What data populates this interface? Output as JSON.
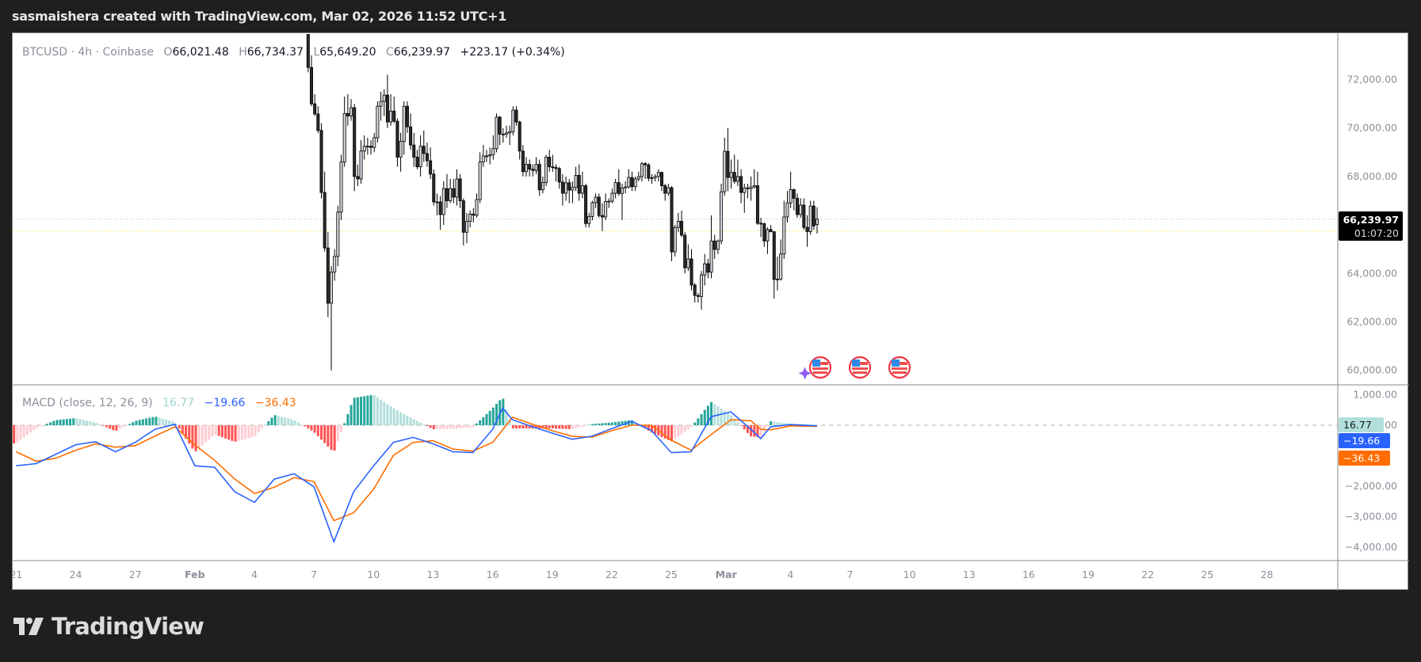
{
  "title": "sasmaishera created with TradingView.com, Mar 02, 2026 11:52 UTC+1",
  "legend": {
    "symbol": "BTCUSD · 4h · Coinbase",
    "o_label": "O",
    "o": "66,021.48",
    "h_label": "H",
    "h": "66,734.37",
    "l_label": "L",
    "l": "65,649.20",
    "c_label": "C",
    "c": "66,239.97",
    "change": "+223.17 (+0.34%)"
  },
  "macd_legend": {
    "name": "MACD (close, 12, 26, 9)",
    "histogram": "16.77",
    "macd": "−19.66",
    "signal": "−36.43"
  },
  "price_axis": [
    "72,000.00",
    "70,000.00",
    "68,000.00",
    "64,000.00",
    "62,000.00",
    "60,000.00"
  ],
  "price_tag": {
    "price": "66,239.97",
    "countdown": "01:07:20"
  },
  "macd_axis": [
    "1,000.00",
    "0.00",
    "−2,000.00",
    "−3,000.00",
    "−4,000.00"
  ],
  "macd_tags": {
    "histogram": "16.77",
    "macd": "−19.66",
    "signal": "−36.43"
  },
  "time_axis": [
    "21",
    "24",
    "27",
    "Feb",
    "4",
    "7",
    "10",
    "13",
    "16",
    "19",
    "22",
    "25",
    "Mar",
    "4",
    "7",
    "10",
    "13",
    "16",
    "19",
    "22",
    "25",
    "28"
  ],
  "logo_text": "TradingView",
  "icons": [
    "us-flag-event-icon",
    "us-flag-event-icon",
    "us-flag-event-icon",
    "sparkle-icon"
  ],
  "colors": {
    "up_candle": "#d1d4dc",
    "down_candle": "#2a2a2a",
    "candle_border": "#000000",
    "macd_line": "#2962ff",
    "signal_line": "#ff6d00",
    "hist_pos_rising": "#26a69a",
    "hist_pos_falling": "#b2dfdb",
    "hist_neg_falling": "#ff5252",
    "hist_neg_rising": "#ffcdd2",
    "last_price_line": "#b0b0b0",
    "prev_close_line": "#f2d600"
  },
  "chart_data": [
    {
      "type": "candlestick",
      "symbol": "BTCUSD",
      "interval": "4h",
      "exchange": "Coinbase",
      "ylim": [
        59500,
        73700
      ],
      "prev_close_line": 65750,
      "candles_ohlc": [
        [
          74800,
          75500,
          73900,
          74200
        ],
        [
          74200,
          74600,
          72300,
          72500
        ],
        [
          72500,
          73000,
          70900,
          71000
        ],
        [
          71000,
          71400,
          70500,
          70580
        ],
        [
          70580,
          70900,
          69800,
          69900
        ],
        [
          69900,
          70200,
          67100,
          67340
        ],
        [
          67340,
          68200,
          64900,
          65050
        ],
        [
          65050,
          65700,
          62200,
          62770
        ],
        [
          62770,
          64300,
          60000,
          64050
        ],
        [
          64050,
          65000,
          63700,
          64700
        ],
        [
          64700,
          66800,
          64300,
          66530
        ],
        [
          66530,
          68900,
          66200,
          68600
        ],
        [
          68600,
          71300,
          68400,
          70600
        ],
        [
          70600,
          71400,
          70100,
          70500
        ],
        [
          70500,
          71200,
          70300,
          70840
        ],
        [
          70840,
          71000,
          67400,
          68000
        ],
        [
          68000,
          68500,
          67600,
          67900
        ],
        [
          67900,
          69500,
          67700,
          69050
        ],
        [
          69050,
          69700,
          68700,
          69250
        ],
        [
          69250,
          69600,
          68900,
          69250
        ],
        [
          69250,
          69500,
          68900,
          69200
        ],
        [
          69200,
          69800,
          69000,
          69600
        ],
        [
          69600,
          71100,
          69400,
          70900
        ],
        [
          70900,
          71500,
          70300,
          71100
        ],
        [
          71100,
          71600,
          70500,
          71360
        ],
        [
          71360,
          72200,
          70000,
          70250
        ],
        [
          70250,
          71400,
          70100,
          70700
        ],
        [
          70700,
          71300,
          70200,
          70280
        ],
        [
          70280,
          70400,
          68400,
          68800
        ],
        [
          68800,
          69800,
          68200,
          69450
        ],
        [
          69450,
          71100,
          68900,
          70900
        ],
        [
          70900,
          71100,
          69800,
          70050
        ],
        [
          70050,
          70600,
          69100,
          69300
        ],
        [
          69300,
          69800,
          68400,
          68800
        ],
        [
          68800,
          69100,
          68300,
          68400
        ],
        [
          68400,
          69700,
          68000,
          69250
        ],
        [
          69250,
          69900,
          68600,
          68950
        ],
        [
          68950,
          69400,
          68400,
          68650
        ],
        [
          68650,
          69200,
          67900,
          68100
        ],
        [
          68100,
          68300,
          66800,
          66950
        ],
        [
          66950,
          67300,
          66400,
          66950
        ],
        [
          66950,
          67200,
          65800,
          66430
        ],
        [
          66430,
          67800,
          66000,
          67500
        ],
        [
          67500,
          68100,
          66700,
          67000
        ],
        [
          67000,
          67900,
          66900,
          67500
        ],
        [
          67500,
          67900,
          66900,
          67150
        ],
        [
          67150,
          68300,
          66800,
          67900
        ],
        [
          67900,
          68100,
          66700,
          67000
        ],
        [
          67000,
          67100,
          65150,
          65700
        ],
        [
          65700,
          66500,
          65250,
          66150
        ],
        [
          66150,
          66600,
          65900,
          66450
        ],
        [
          66450,
          66700,
          66100,
          66400
        ],
        [
          66400,
          67300,
          66300,
          67050
        ],
        [
          67050,
          69000,
          66900,
          68600
        ],
        [
          68600,
          69300,
          68400,
          68850
        ],
        [
          68850,
          69100,
          68600,
          68850
        ],
        [
          68850,
          69200,
          68500,
          68900
        ],
        [
          68900,
          69700,
          68700,
          69150
        ],
        [
          69150,
          70600,
          69000,
          70450
        ],
        [
          70450,
          70500,
          69300,
          69750
        ],
        [
          69750,
          70000,
          69400,
          69750
        ],
        [
          69750,
          70100,
          69600,
          69800
        ],
        [
          69800,
          70100,
          69300,
          69850
        ],
        [
          69850,
          70900,
          69700,
          70740
        ],
        [
          70740,
          70900,
          70100,
          70250
        ],
        [
          70250,
          70300,
          68700,
          69050
        ],
        [
          69050,
          69300,
          68000,
          68200
        ],
        [
          68200,
          68800,
          68000,
          68500
        ],
        [
          68500,
          68700,
          68000,
          68300
        ],
        [
          68300,
          68500,
          68000,
          68250
        ],
        [
          68250,
          68800,
          68100,
          68500
        ],
        [
          68500,
          68700,
          67200,
          67450
        ],
        [
          67450,
          68000,
          67300,
          67750
        ],
        [
          67750,
          68900,
          67600,
          68800
        ],
        [
          68800,
          69100,
          68200,
          68400
        ],
        [
          68400,
          68900,
          68200,
          68370
        ],
        [
          68370,
          68500,
          67800,
          68330
        ],
        [
          68330,
          68400,
          67500,
          67770
        ],
        [
          67770,
          68100,
          66800,
          67310
        ],
        [
          67310,
          68000,
          67000,
          67740
        ],
        [
          67740,
          67900,
          66900,
          67440
        ],
        [
          67440,
          67800,
          66900,
          67550
        ],
        [
          67550,
          68400,
          67400,
          68050
        ],
        [
          68050,
          68500,
          67000,
          67310
        ],
        [
          67310,
          68200,
          67100,
          67620
        ],
        [
          67620,
          67700,
          65900,
          66060
        ],
        [
          66060,
          66500,
          65900,
          66350
        ],
        [
          66350,
          67000,
          66200,
          66920
        ],
        [
          66920,
          67300,
          66700,
          67150
        ],
        [
          67150,
          67300,
          66300,
          66390
        ],
        [
          66390,
          66900,
          65750,
          66330
        ],
        [
          66330,
          67300,
          66200,
          66970
        ],
        [
          66970,
          67100,
          66700,
          66980
        ],
        [
          66980,
          67500,
          66900,
          67310
        ],
        [
          67310,
          67900,
          67100,
          67750
        ],
        [
          67750,
          68300,
          67200,
          67300
        ],
        [
          67300,
          67700,
          66200,
          67530
        ],
        [
          67530,
          67800,
          67300,
          67570
        ],
        [
          67570,
          68300,
          67500,
          67960
        ],
        [
          67960,
          68200,
          67400,
          67580
        ],
        [
          67580,
          68000,
          67400,
          67900
        ],
        [
          67900,
          68200,
          67800,
          68000
        ],
        [
          68000,
          68600,
          67800,
          68530
        ],
        [
          68530,
          68600,
          67900,
          68480
        ],
        [
          68480,
          68550,
          67800,
          67930
        ],
        [
          67930,
          68100,
          67700,
          67950
        ],
        [
          67950,
          68100,
          67800,
          68000
        ],
        [
          68000,
          68300,
          67800,
          68170
        ],
        [
          68170,
          68200,
          67400,
          67620
        ],
        [
          67620,
          67700,
          67000,
          67310
        ],
        [
          67310,
          67700,
          67200,
          67540
        ],
        [
          67540,
          67600,
          64500,
          64890
        ],
        [
          64890,
          66000,
          64700,
          65900
        ],
        [
          65900,
          66500,
          65700,
          66150
        ],
        [
          66150,
          66600,
          65500,
          65580
        ],
        [
          65580,
          65700,
          64000,
          64230
        ],
        [
          64230,
          65200,
          64100,
          64600
        ],
        [
          64600,
          65000,
          63300,
          63520
        ],
        [
          63520,
          63600,
          62800,
          63090
        ],
        [
          63090,
          63200,
          62800,
          63050
        ],
        [
          63050,
          64100,
          62500,
          63940
        ],
        [
          63940,
          64800,
          63500,
          64400
        ],
        [
          64400,
          64600,
          63800,
          64050
        ],
        [
          64050,
          66400,
          63800,
          65340
        ],
        [
          65340,
          65600,
          64600,
          64990
        ],
        [
          64990,
          65400,
          64800,
          65340
        ],
        [
          65340,
          67700,
          65200,
          67370
        ],
        [
          67370,
          69600,
          67200,
          69040
        ],
        [
          69040,
          70000,
          67400,
          67960
        ],
        [
          67960,
          68700,
          67500,
          68170
        ],
        [
          68170,
          68900,
          67700,
          67800
        ],
        [
          67800,
          68700,
          67600,
          68000
        ],
        [
          68000,
          68300,
          66900,
          67340
        ],
        [
          67340,
          67700,
          66500,
          67530
        ],
        [
          67530,
          67700,
          67100,
          67500
        ],
        [
          67500,
          68000,
          67000,
          67570
        ],
        [
          67570,
          68300,
          67500,
          67620
        ],
        [
          67620,
          68200,
          66000,
          66070
        ],
        [
          66070,
          66300,
          65500,
          66050
        ],
        [
          66050,
          66100,
          65100,
          65340
        ],
        [
          65340,
          65900,
          64800,
          65810
        ],
        [
          65810,
          66000,
          65700,
          65720
        ],
        [
          65720,
          65750,
          62960,
          63750
        ],
        [
          63750,
          64700,
          63300,
          63770
        ],
        [
          63770,
          65400,
          63700,
          64800
        ],
        [
          64800,
          67000,
          64600,
          66330
        ],
        [
          66330,
          67400,
          66100,
          66910
        ],
        [
          66910,
          68200,
          66700,
          67460
        ],
        [
          67460,
          67500,
          66600,
          67100
        ],
        [
          67100,
          67300,
          66300,
          66430
        ],
        [
          66430,
          67100,
          66300,
          66820
        ],
        [
          66820,
          67100,
          65800,
          65900
        ],
        [
          65900,
          66400,
          65100,
          65730
        ],
        [
          65730,
          67000,
          65600,
          66780
        ],
        [
          66780,
          67000,
          65800,
          65960
        ],
        [
          66021.48,
          66734.37,
          65649.2,
          66239.97
        ]
      ]
    },
    {
      "type": "line",
      "name": "MACD (close, 12, 26, 9)",
      "ylim": [
        -4300,
        1150
      ],
      "x": [
        "2026-01-21",
        "2026-01-22",
        "2026-01-23",
        "2026-01-24",
        "2026-01-25",
        "2026-01-26",
        "2026-01-27",
        "2026-01-28",
        "2026-01-29",
        "2026-01-30",
        "2026-01-31",
        "2026-02-01",
        "2026-02-02",
        "2026-02-03",
        "2026-02-04",
        "2026-02-05",
        "2026-02-06",
        "2026-02-07",
        "2026-02-08",
        "2026-02-09",
        "2026-02-10",
        "2026-02-11",
        "2026-02-12",
        "2026-02-13",
        "2026-02-14",
        "2026-02-14T12:00",
        "2026-02-15",
        "2026-02-16",
        "2026-02-17",
        "2026-02-18",
        "2026-02-19",
        "2026-02-20",
        "2026-02-21",
        "2026-02-22",
        "2026-02-23",
        "2026-02-24",
        "2026-02-25",
        "2026-02-26",
        "2026-02-27",
        "2026-02-27T12:00",
        "2026-02-28",
        "2026-03-01",
        "2026-03-02T08:00"
      ],
      "macd": [
        -1330,
        -1260,
        -950,
        -640,
        -540,
        -870,
        -560,
        -130,
        30,
        -1330,
        -1380,
        -2180,
        -2530,
        -1770,
        -1590,
        -2020,
        -3820,
        -2180,
        -1330,
        -560,
        -400,
        -610,
        -870,
        -900,
        -130,
        560,
        180,
        -50,
        -260,
        -460,
        -360,
        -110,
        130,
        -180,
        -900,
        -870,
        280,
        440,
        -130,
        -440,
        -50,
        20,
        -19.66
      ],
      "signal": [
        -870,
        -1180,
        -1080,
        -820,
        -610,
        -720,
        -670,
        -350,
        -50,
        -650,
        -1150,
        -1760,
        -2240,
        -2030,
        -1720,
        -1850,
        -3130,
        -2870,
        -2100,
        -990,
        -560,
        -510,
        -780,
        -850,
        -560,
        -150,
        260,
        30,
        -180,
        -360,
        -390,
        -180,
        0,
        0,
        -490,
        -820,
        -310,
        180,
        150,
        -130,
        -150,
        -20,
        -36.43
      ]
    }
  ]
}
